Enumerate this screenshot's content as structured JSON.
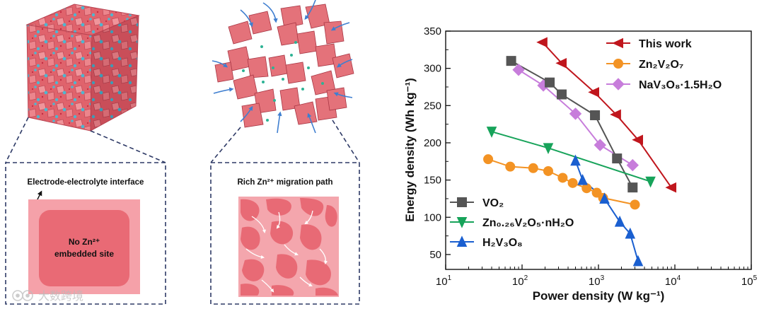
{
  "left_panel": {
    "box_title": "Electrode-electrolyte interface",
    "inner_line1": "No Zn²⁺",
    "inner_line2": "embedded site"
  },
  "middle_panel": {
    "box_title": "Rich Zn²⁺ migration path"
  },
  "watermark": {
    "text": "大数跨境"
  },
  "colors": {
    "red": "#c0161d",
    "orange": "#f39324",
    "purple": "#c77ddb",
    "gray": "#555555",
    "green": "#17a35a",
    "blue": "#1a5fd0",
    "crystal": "#e4727a",
    "pink_light": "#f3a1a8",
    "pink_dark": "#e86f78",
    "arrow_blue": "#3f7fd0"
  },
  "chart_data": {
    "type": "scatter",
    "xlabel": "Power density (W kg⁻¹)",
    "ylabel": "Energy density (Wh kg⁻¹)",
    "xscale": "log",
    "xlim": [
      10,
      100000
    ],
    "ylim": [
      30,
      350
    ],
    "x_ticks": [
      10,
      100,
      1000,
      10000,
      100000
    ],
    "x_tick_labels": [
      {
        "base": "10",
        "exp": "1"
      },
      {
        "base": "10",
        "exp": "2"
      },
      {
        "base": "10",
        "exp": "3"
      },
      {
        "base": "10",
        "exp": "4"
      },
      {
        "base": "10",
        "exp": "5"
      }
    ],
    "y_ticks": [
      50,
      100,
      150,
      200,
      250,
      300,
      350
    ],
    "legend_upper": "top-right",
    "legend_lower": "bottom-left",
    "series": [
      {
        "name": "This work",
        "marker": "triangle-left",
        "color": "#c0161d",
        "legend": "upper",
        "x": [
          185,
          330,
          880,
          1700,
          3300,
          9000
        ],
        "y": [
          335,
          307,
          268,
          238,
          204,
          140
        ]
      },
      {
        "name": "Zn₂V₂O₇",
        "marker": "circle",
        "color": "#f39324",
        "legend": "upper",
        "x": [
          36,
          70,
          140,
          220,
          340,
          460,
          700,
          950,
          1150,
          3000
        ],
        "y": [
          178,
          168,
          166,
          162,
          153,
          146,
          139,
          133,
          126,
          117
        ]
      },
      {
        "name": "NaV₃O₈·1.5H₂O",
        "marker": "diamond",
        "color": "#c77ddb",
        "legend": "upper",
        "x": [
          90,
          190,
          500,
          1050,
          2800
        ],
        "y": [
          298,
          277,
          239,
          197,
          170
        ]
      },
      {
        "name": "VO₂",
        "marker": "square",
        "color": "#555555",
        "legend": "lower",
        "x": [
          72,
          230,
          330,
          900,
          1750,
          2800
        ],
        "y": [
          310,
          281,
          265,
          237,
          179,
          140
        ]
      },
      {
        "name": "Zn₀.₂₆V₂O₅·nH₂O",
        "marker": "triangle-down",
        "color": "#17a35a",
        "legend": "lower",
        "x": [
          40,
          220,
          4800
        ],
        "y": [
          215,
          193,
          148
        ]
      },
      {
        "name": "H₂V₃O₈",
        "marker": "triangle-up",
        "color": "#1a5fd0",
        "legend": "lower",
        "x": [
          500,
          620,
          1200,
          1900,
          2600,
          3300
        ],
        "y": [
          176,
          150,
          125,
          94,
          78,
          41
        ]
      }
    ]
  }
}
